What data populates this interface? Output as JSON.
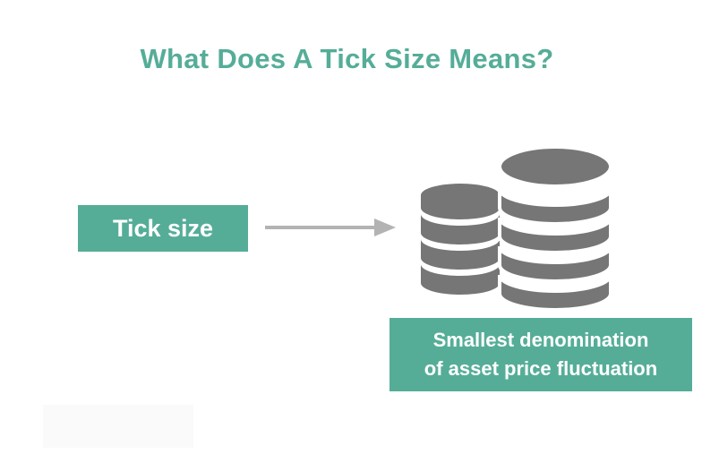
{
  "title": "What Does A Tick Size Means?",
  "tick_box": {
    "label": "Tick size"
  },
  "description": {
    "line1": "Smallest denomination",
    "line2": "of asset price fluctuation"
  },
  "icons": {
    "arrow": "right-arrow-icon",
    "coins": "coin-stack-icon"
  },
  "colors": {
    "accent": "#55ad98",
    "arrow": "#b3b3b3",
    "coin": "#767676"
  }
}
